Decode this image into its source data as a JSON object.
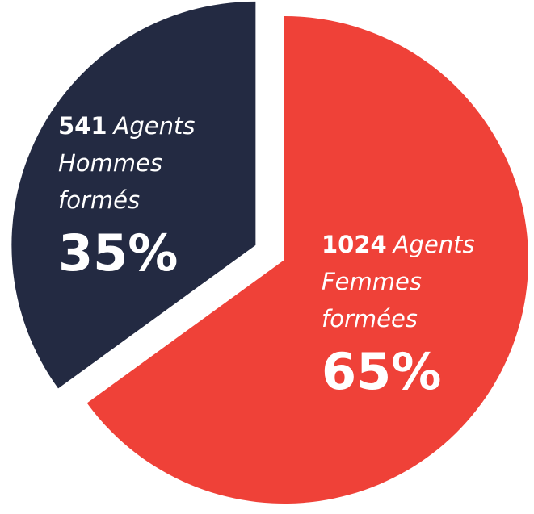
{
  "chart_data": {
    "type": "pie",
    "categories": [
      "Agents Femmes formées",
      "Agents Hommes formés"
    ],
    "counts": [
      1024,
      541
    ],
    "values": [
      65,
      35
    ],
    "value_labels": [
      "65%",
      "35%"
    ],
    "colors": [
      "#ef4138",
      "#232a42"
    ]
  }
}
